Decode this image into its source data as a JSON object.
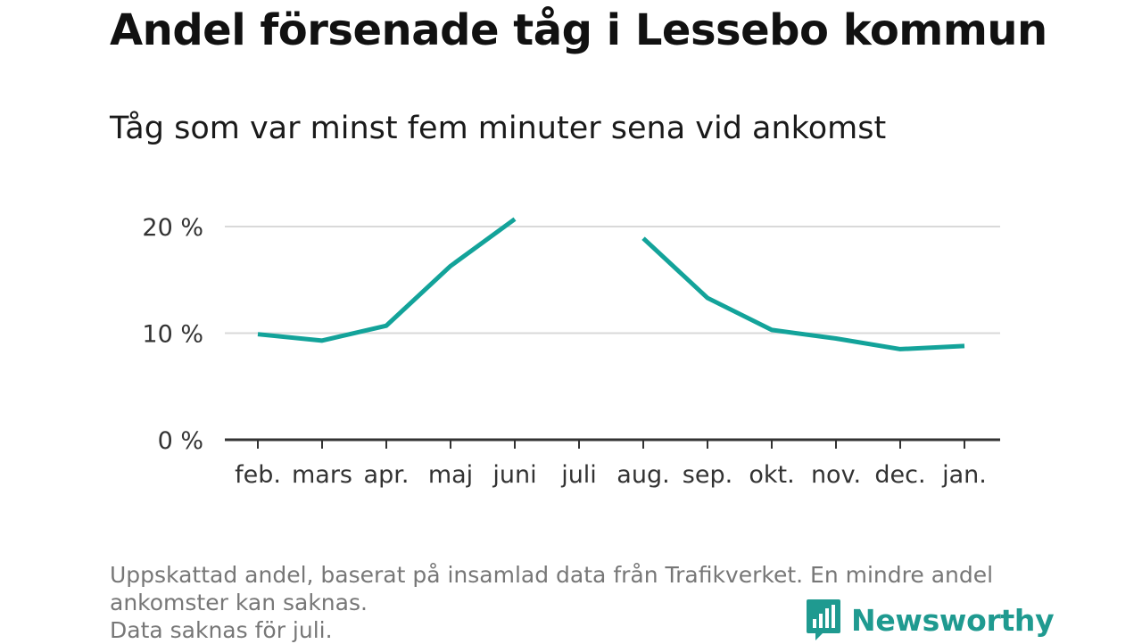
{
  "header": {
    "title": "Andel försenade tåg i Lessebo kommun",
    "subtitle": "Tåg som var minst fem minuter sena vid ankomst"
  },
  "footnote": {
    "line1": "Uppskattad andel, baserat på insamlad data från Trafikverket. En mindre andel ankomster kan saknas.",
    "line2": "Data saknas för juli."
  },
  "brand": {
    "name": "Newsworthy",
    "icon": "newsworthy-logo-icon",
    "color": "#1f9a90"
  },
  "chart_data": {
    "type": "line",
    "title": "Andel försenade tåg i Lessebo kommun",
    "subtitle": "Tåg som var minst fem minuter sena vid ankomst",
    "xlabel": "",
    "ylabel": "",
    "categories": [
      "feb.",
      "mars",
      "apr.",
      "maj",
      "juni",
      "juli",
      "aug.",
      "sep.",
      "okt.",
      "nov.",
      "dec.",
      "jan."
    ],
    "series": [
      {
        "values": [
          9.9,
          9.3,
          10.7,
          16.3,
          20.7,
          null,
          18.9,
          13.3,
          10.3,
          9.5,
          8.5,
          8.8
        ],
        "color": "#13a39a"
      }
    ],
    "ylim": [
      0,
      20
    ],
    "yticks": [
      0,
      10,
      20
    ],
    "ytick_labels": [
      "0 %",
      "10 %",
      "20 %"
    ],
    "grid": true,
    "legend": "none"
  }
}
